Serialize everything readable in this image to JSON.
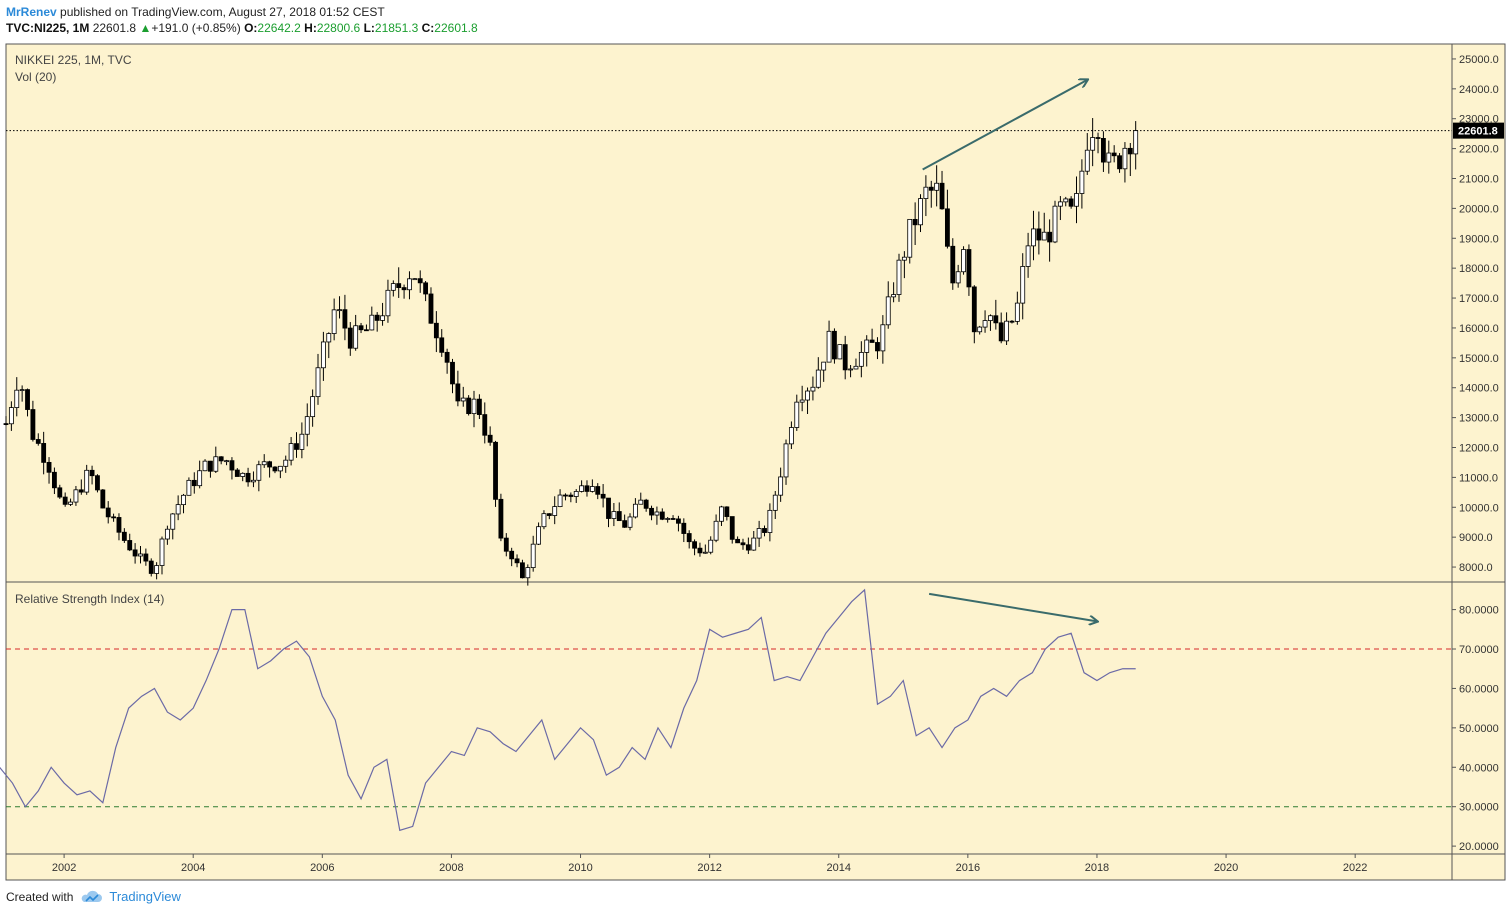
{
  "header": {
    "author": "MrRenev",
    "published": "published on TradingView.com, August 27, 2018 01:52 CEST",
    "symbol": "TVC:NI225, 1M",
    "last": "22601.8",
    "change": "+191.0 (+0.85%)",
    "open_label": "O:",
    "open": "22642.2",
    "high_label": "H:",
    "high": "22800.6",
    "low_label": "L:",
    "low": "21851.3",
    "close_label": "C:",
    "close": "22601.8"
  },
  "footer": {
    "created": "Created with",
    "brand": "TradingView"
  },
  "colors": {
    "bg": "#fdf3cf",
    "up": "#ffffff",
    "down": "#000000",
    "rsi_line": "#6b6aa6",
    "overbought": "#d62728",
    "oversold": "#2e7d32",
    "arrow": "#3a6b6b"
  },
  "chart_data": [
    {
      "type": "candlestick",
      "legend": [
        "NIKKEI 225, 1M, TVC",
        "Vol (20)"
      ],
      "y_ticks": [
        "8000.0",
        "9000.0",
        "10000.0",
        "11000.0",
        "12000.0",
        "13000.0",
        "14000.0",
        "15000.0",
        "16000.0",
        "17000.0",
        "18000.0",
        "19000.0",
        "20000.0",
        "21000.0",
        "22000.0",
        "23000.0",
        "24000.0",
        "25000.0"
      ],
      "ylim": [
        7500,
        25500
      ],
      "price_line": 22601.8,
      "price_label": "22601.8",
      "x_ticks": [
        "2002",
        "2004",
        "2006",
        "2008",
        "2010",
        "2012",
        "2014",
        "2016",
        "2018",
        "2020",
        "2022"
      ],
      "xlim": [
        2001.1,
        2023.5
      ],
      "close_path": [
        [
          2001.1,
          12800
        ],
        [
          2001.3,
          14500
        ],
        [
          2001.5,
          12500
        ],
        [
          2001.75,
          11500
        ],
        [
          2002.0,
          9800
        ],
        [
          2002.2,
          10500
        ],
        [
          2002.4,
          11200
        ],
        [
          2002.6,
          10000
        ],
        [
          2002.9,
          9000
        ],
        [
          2003.2,
          8200
        ],
        [
          2003.4,
          7900
        ],
        [
          2003.6,
          9500
        ],
        [
          2003.9,
          10600
        ],
        [
          2004.2,
          11400
        ],
        [
          2004.5,
          11600
        ],
        [
          2004.8,
          11000
        ],
        [
          2005.1,
          11400
        ],
        [
          2005.4,
          11500
        ],
        [
          2005.7,
          12500
        ],
        [
          2005.95,
          14600
        ],
        [
          2006.2,
          16700
        ],
        [
          2006.45,
          15600
        ],
        [
          2006.75,
          16000
        ],
        [
          2007.1,
          17200
        ],
        [
          2007.4,
          18000
        ],
        [
          2007.6,
          16800
        ],
        [
          2007.9,
          15300
        ],
        [
          2008.1,
          13300
        ],
        [
          2008.4,
          13500
        ],
        [
          2008.6,
          12000
        ],
        [
          2008.75,
          8800
        ],
        [
          2008.95,
          8400
        ],
        [
          2009.1,
          7600
        ],
        [
          2009.4,
          9500
        ],
        [
          2009.7,
          10400
        ],
        [
          2009.95,
          10500
        ],
        [
          2010.2,
          11000
        ],
        [
          2010.45,
          9700
        ],
        [
          2010.7,
          9400
        ],
        [
          2010.95,
          10200
        ],
        [
          2011.2,
          9800
        ],
        [
          2011.45,
          9800
        ],
        [
          2011.7,
          8700
        ],
        [
          2011.95,
          8500
        ],
        [
          2012.2,
          10000
        ],
        [
          2012.4,
          8700
        ],
        [
          2012.65,
          8800
        ],
        [
          2012.9,
          9400
        ],
        [
          2013.1,
          11200
        ],
        [
          2013.35,
          13800
        ],
        [
          2013.6,
          14200
        ],
        [
          2013.85,
          15600
        ],
        [
          2014.1,
          14800
        ],
        [
          2014.4,
          15200
        ],
        [
          2014.65,
          15600
        ],
        [
          2014.85,
          17400
        ],
        [
          2015.1,
          19200
        ],
        [
          2015.35,
          20500
        ],
        [
          2015.55,
          20600
        ],
        [
          2015.75,
          17400
        ],
        [
          2015.95,
          19000
        ],
        [
          2016.1,
          16000
        ],
        [
          2016.3,
          16700
        ],
        [
          2016.5,
          15500
        ],
        [
          2016.75,
          16500
        ],
        [
          2016.95,
          19100
        ],
        [
          2017.2,
          19000
        ],
        [
          2017.45,
          20000
        ],
        [
          2017.65,
          19700
        ],
        [
          2017.85,
          22400
        ],
        [
          2018.0,
          23100
        ],
        [
          2018.15,
          21400
        ],
        [
          2018.3,
          21500
        ],
        [
          2018.45,
          22200
        ],
        [
          2018.6,
          22601.8
        ]
      ]
    },
    {
      "type": "line",
      "legend": [
        "Relative Strength Index (14)"
      ],
      "y_ticks": [
        "20.0000",
        "30.0000",
        "40.0000",
        "50.0000",
        "60.0000",
        "70.0000",
        "80.0000"
      ],
      "ylim": [
        18,
        87
      ],
      "overbought": 70,
      "oversold": 30,
      "x": [
        2001.0,
        2001.2,
        2001.4,
        2001.6,
        2001.8,
        2002.0,
        2002.2,
        2002.4,
        2002.6,
        2002.8,
        2003.0,
        2003.2,
        2003.4,
        2003.6,
        2003.8,
        2004.0,
        2004.2,
        2004.4,
        2004.6,
        2004.8,
        2005.0,
        2005.2,
        2005.4,
        2005.6,
        2005.8,
        2006.0,
        2006.2,
        2006.4,
        2006.6,
        2006.8,
        2007.0,
        2007.2,
        2007.4,
        2007.6,
        2007.8,
        2008.0,
        2008.2,
        2008.4,
        2008.6,
        2008.8,
        2009.0,
        2009.2,
        2009.4,
        2009.6,
        2009.8,
        2010.0,
        2010.2,
        2010.4,
        2010.6,
        2010.8,
        2011.0,
        2011.2,
        2011.4,
        2011.6,
        2011.8,
        2012.0,
        2012.2,
        2012.4,
        2012.6,
        2012.8,
        2013.0,
        2013.2,
        2013.4,
        2013.6,
        2013.8,
        2014.0,
        2014.2,
        2014.4,
        2014.6,
        2014.8,
        2015.0,
        2015.2,
        2015.4,
        2015.6,
        2015.8,
        2016.0,
        2016.2,
        2016.4,
        2016.6,
        2016.8,
        2017.0,
        2017.2,
        2017.4,
        2017.6,
        2017.8,
        2018.0,
        2018.2,
        2018.4,
        2018.6
      ],
      "values": [
        40,
        36,
        30,
        34,
        40,
        36,
        33,
        34,
        31,
        45,
        55,
        58,
        60,
        54,
        52,
        55,
        62,
        70,
        80,
        80,
        65,
        67,
        70,
        72,
        68,
        58,
        52,
        38,
        32,
        40,
        42,
        24,
        25,
        36,
        40,
        44,
        43,
        50,
        49,
        46,
        44,
        48,
        52,
        42,
        46,
        50,
        47,
        38,
        40,
        45,
        42,
        50,
        45,
        55,
        62,
        75,
        73,
        74,
        75,
        78,
        62,
        63,
        62,
        68,
        74,
        78,
        82,
        85,
        56,
        58,
        62,
        48,
        50,
        45,
        50,
        52,
        58,
        60,
        58,
        62,
        64,
        70,
        73,
        74,
        64,
        62,
        64,
        65,
        65
      ]
    }
  ]
}
